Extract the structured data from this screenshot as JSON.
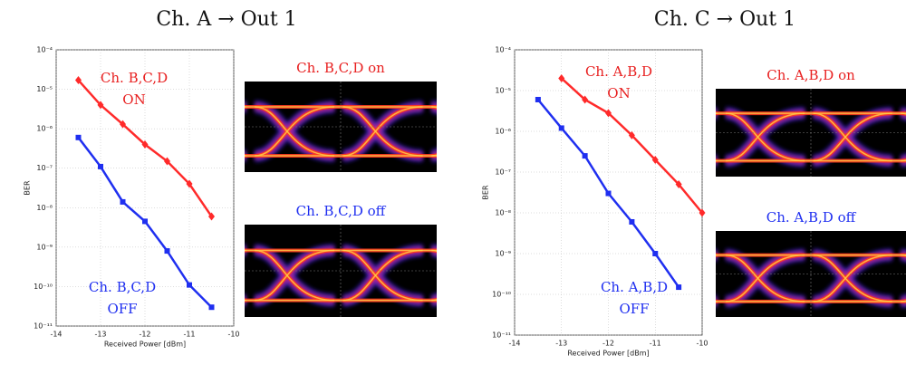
{
  "chart_data": [
    {
      "type": "line",
      "title": "Ch. A → Out 1",
      "x_label": "Received Power [dBm]",
      "y_label": "BER",
      "log_y": true,
      "grid": true,
      "xlim": [
        -14,
        -10
      ],
      "xticks": [
        -14,
        -13,
        -12,
        -11,
        -10
      ],
      "ylim": [
        1e-11,
        0.0001
      ],
      "yticks": [
        {
          "value": 1e-11,
          "label": "10⁻¹¹"
        },
        {
          "value": 1e-10,
          "label": "10⁻¹⁰"
        },
        {
          "value": 1e-09,
          "label": "10⁻⁹"
        },
        {
          "value": 1e-08,
          "label": "10⁻⁸"
        },
        {
          "value": 1e-07,
          "label": "10⁻⁷"
        },
        {
          "value": 1e-06,
          "label": "10⁻⁶"
        },
        {
          "value": 1e-05,
          "label": "10⁻⁵"
        },
        {
          "value": 0.0001,
          "label": "10⁻⁴"
        }
      ],
      "series": [
        {
          "color": "#ff2a2a",
          "marker": "diamond",
          "x": [
            -13.5,
            -13,
            -12.5,
            -12,
            -11.5,
            -11,
            -10.5
          ],
          "values": [
            1.7e-05,
            4e-06,
            1.3e-06,
            4e-07,
            1.5e-07,
            4e-08,
            6e-09
          ]
        },
        {
          "color": "#1f2ff0",
          "marker": "square",
          "x": [
            -13.5,
            -13,
            -12.5,
            -12,
            -11.5,
            -11,
            -10.5
          ],
          "values": [
            6e-07,
            1.1e-07,
            1.4e-08,
            4.5e-09,
            8e-10,
            1.1e-10,
            3e-11
          ]
        }
      ],
      "annotations": [
        {
          "lines": [
            "Ch. B,C,D",
            "ON"
          ],
          "color": "#e82020"
        },
        {
          "lines": [
            "Ch. B,C,D",
            "OFF"
          ],
          "color": "#1f2ff0"
        }
      ],
      "eye_diagrams": [
        {
          "label": "Ch. B,C,D on",
          "color": "#e82020"
        },
        {
          "label": "Ch. B,C,D off",
          "color": "#1f2ff0"
        }
      ]
    },
    {
      "type": "line",
      "title": "Ch. C → Out 1",
      "x_label": "Received Power [dBm]",
      "y_label": "BER",
      "log_y": true,
      "grid": true,
      "xlim": [
        -14,
        -10
      ],
      "xticks": [
        -14,
        -13,
        -12,
        -11,
        -10
      ],
      "ylim": [
        1e-11,
        0.0001
      ],
      "yticks": [
        {
          "value": 1e-11,
          "label": "10⁻¹¹"
        },
        {
          "value": 1e-10,
          "label": "10⁻¹⁰"
        },
        {
          "value": 1e-09,
          "label": "10⁻⁹"
        },
        {
          "value": 1e-08,
          "label": "10⁻⁸"
        },
        {
          "value": 1e-07,
          "label": "10⁻⁷"
        },
        {
          "value": 1e-06,
          "label": "10⁻⁶"
        },
        {
          "value": 1e-05,
          "label": "10⁻⁵"
        },
        {
          "value": 0.0001,
          "label": "10⁻⁴"
        }
      ],
      "series": [
        {
          "color": "#ff2a2a",
          "marker": "diamond",
          "x": [
            -13,
            -12.5,
            -12,
            -11.5,
            -11,
            -10.5,
            -10
          ],
          "values": [
            2e-05,
            6e-06,
            2.8e-06,
            8e-07,
            2e-07,
            5e-08,
            1e-08
          ]
        },
        {
          "color": "#1f2ff0",
          "marker": "square",
          "x": [
            -13.5,
            -13,
            -12.5,
            -12,
            -11.5,
            -11,
            -10.5
          ],
          "values": [
            6e-06,
            1.2e-06,
            2.5e-07,
            3e-08,
            6e-09,
            1e-09,
            1.5e-10
          ]
        }
      ],
      "annotations": [
        {
          "lines": [
            "Ch. A,B,D",
            "ON"
          ],
          "color": "#e82020"
        },
        {
          "lines": [
            "Ch. A,B,D",
            "OFF"
          ],
          "color": "#1f2ff0"
        }
      ],
      "eye_diagrams": [
        {
          "label": "Ch. A,B,D on",
          "color": "#e82020"
        },
        {
          "label": "Ch. A,B,D off",
          "color": "#1f2ff0"
        }
      ]
    }
  ]
}
